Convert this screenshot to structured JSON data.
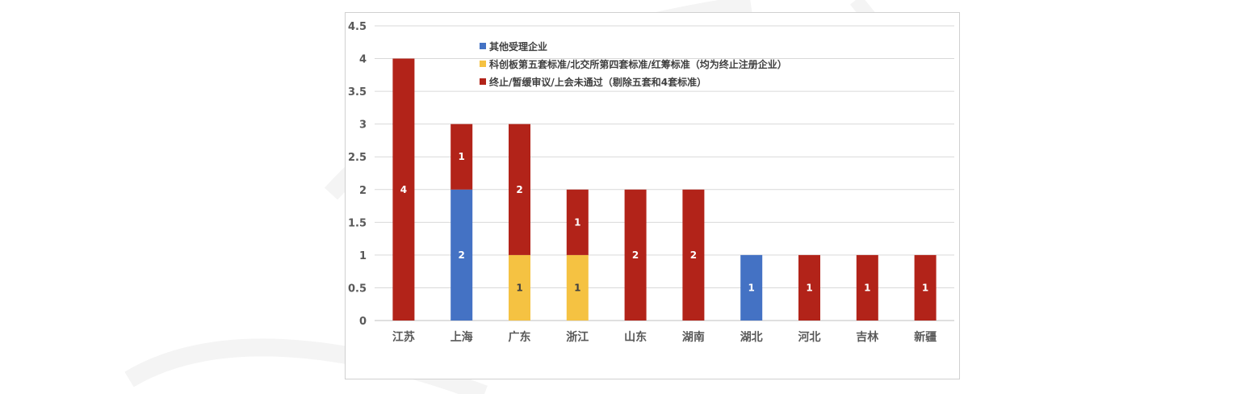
{
  "chart_data": {
    "type": "bar",
    "stacked": true,
    "categories": [
      "江苏",
      "上海",
      "广东",
      "浙江",
      "山东",
      "湖南",
      "湖北",
      "河北",
      "吉林",
      "新疆"
    ],
    "series": [
      {
        "name": "其他受理企业",
        "color": "#4472c4",
        "values": [
          0,
          2,
          0,
          0,
          0,
          0,
          1,
          0,
          0,
          0
        ]
      },
      {
        "name": "科创板第五套标准/北交所第四套标准/红筹标准（均为终止注册企业）",
        "color": "#f5c242",
        "values": [
          0,
          0,
          1,
          1,
          0,
          0,
          0,
          0,
          0,
          0
        ]
      },
      {
        "name": "终止/暂缓审议/上会未通过（剔除五套和4套标准）",
        "color": "#b22319",
        "values": [
          4,
          1,
          2,
          1,
          2,
          2,
          0,
          1,
          1,
          1
        ]
      }
    ],
    "ylim": [
      0,
      4.5
    ],
    "yticks": [
      "0",
      "0.5",
      "1",
      "1.5",
      "2",
      "2.5",
      "3",
      "3.5",
      "4",
      "4.5"
    ],
    "grid": true,
    "legend_position": "top-left",
    "data_labels": true
  }
}
